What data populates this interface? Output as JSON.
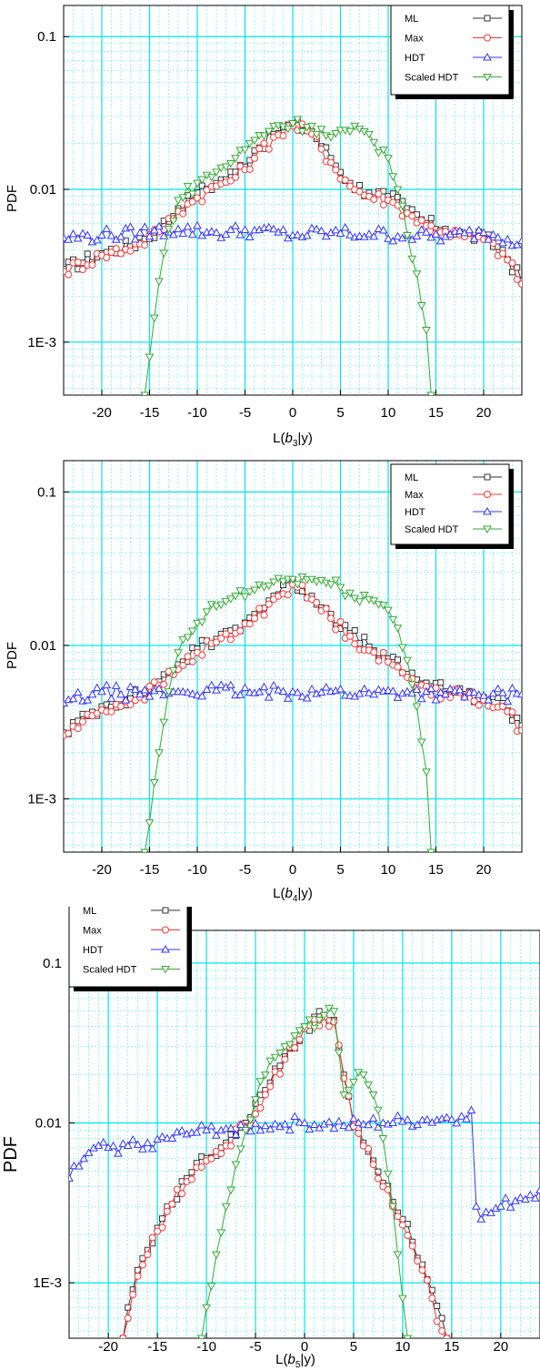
{
  "series_styles": [
    {
      "name": "ML",
      "color": "#333333",
      "marker": "square"
    },
    {
      "name": "Max",
      "color": "#ff3333",
      "marker": "circle"
    },
    {
      "name": "HDT",
      "color": "#3333ff",
      "marker": "triangle-up"
    },
    {
      "name": "Scaled HDT",
      "color": "#33aa33",
      "marker": "triangle-down"
    }
  ],
  "grid_color": "#00e5e5",
  "chart_data": [
    {
      "type": "line",
      "ylabel": "PDF",
      "xlabel_prefix": "L(",
      "xlabel_var": "b",
      "xlabel_sub": "3",
      "xlabel_suffix": "|y)",
      "xlim": [
        -24,
        24
      ],
      "ylim": [
        0.00045,
        0.16
      ],
      "yscale": "log",
      "grid": true,
      "legend": "top-right",
      "xticks": [
        -20,
        -15,
        -10,
        -5,
        0,
        5,
        10,
        15,
        20
      ],
      "yticks": [
        {
          "value": 0.1,
          "label": "0.1"
        },
        {
          "value": 0.01,
          "label": "0.01"
        },
        {
          "value": 0.001,
          "label": "1E-3"
        }
      ],
      "series": [
        {
          "name": "ML",
          "x": [
            -24,
            -20,
            -16,
            -14,
            -12,
            -10,
            -8,
            -6,
            -4,
            -2,
            0,
            2,
            4,
            6,
            8,
            10,
            12,
            14,
            16,
            18,
            20,
            22,
            24
          ],
          "y": [
            0.003,
            0.0038,
            0.0045,
            0.0055,
            0.0075,
            0.0095,
            0.011,
            0.013,
            0.018,
            0.023,
            0.027,
            0.024,
            0.016,
            0.011,
            0.0095,
            0.009,
            0.0075,
            0.006,
            0.0055,
            0.005,
            0.0048,
            0.004,
            0.0025
          ]
        },
        {
          "name": "Max",
          "x": [
            -24,
            -20,
            -16,
            -14,
            -12,
            -10,
            -8,
            -6,
            -4,
            -2,
            0,
            2,
            4,
            6,
            8,
            10,
            12,
            14,
            16,
            18,
            20,
            22,
            24
          ],
          "y": [
            0.0029,
            0.0037,
            0.0044,
            0.0053,
            0.0072,
            0.0088,
            0.0105,
            0.012,
            0.016,
            0.022,
            0.026,
            0.023,
            0.015,
            0.0105,
            0.009,
            0.0085,
            0.007,
            0.0058,
            0.0053,
            0.0049,
            0.0047,
            0.0038,
            0.0024
          ]
        },
        {
          "name": "HDT",
          "x": [
            -24,
            -20,
            -16,
            -12,
            -8,
            -4,
            0,
            4,
            8,
            12,
            16,
            20,
            24
          ],
          "y": [
            0.0048,
            0.005,
            0.0052,
            0.0055,
            0.0052,
            0.0054,
            0.005,
            0.0052,
            0.0051,
            0.005,
            0.0049,
            0.0052,
            0.0046
          ]
        },
        {
          "name": "Scaled HDT",
          "x": [
            -15.5,
            -15,
            -14,
            -13,
            -12,
            -10,
            -8,
            -6,
            -4,
            -2,
            0,
            2,
            4,
            6,
            8,
            10,
            11,
            12,
            13,
            14,
            14.5
          ],
          "y": [
            0.00045,
            0.0008,
            0.0025,
            0.0055,
            0.0085,
            0.011,
            0.013,
            0.016,
            0.021,
            0.026,
            0.027,
            0.026,
            0.022,
            0.024,
            0.023,
            0.016,
            0.01,
            0.005,
            0.0028,
            0.0012,
            0.00045
          ]
        }
      ]
    },
    {
      "type": "line",
      "ylabel": "PDF",
      "xlabel_prefix": "L(",
      "xlabel_var": "b",
      "xlabel_sub": "4",
      "xlabel_suffix": "|y)",
      "xlim": [
        -24,
        24
      ],
      "ylim": [
        0.00045,
        0.16
      ],
      "yscale": "log",
      "grid": true,
      "legend": "top-right",
      "xticks": [
        -20,
        -15,
        -10,
        -5,
        0,
        5,
        10,
        15,
        20
      ],
      "yticks": [
        {
          "value": 0.1,
          "label": "0.1"
        },
        {
          "value": 0.01,
          "label": "0.01"
        },
        {
          "value": 0.001,
          "label": "1E-3"
        }
      ],
      "series": [
        {
          "name": "ML",
          "x": [
            -24,
            -20,
            -16,
            -14,
            -12,
            -10,
            -8,
            -6,
            -4,
            -2,
            0,
            2,
            4,
            6,
            8,
            10,
            12,
            14,
            16,
            18,
            20,
            22,
            24
          ],
          "y": [
            0.0027,
            0.004,
            0.0048,
            0.0058,
            0.0075,
            0.0095,
            0.011,
            0.013,
            0.016,
            0.021,
            0.026,
            0.021,
            0.016,
            0.012,
            0.0098,
            0.0082,
            0.0065,
            0.0057,
            0.005,
            0.0048,
            0.0046,
            0.0042,
            0.003
          ]
        },
        {
          "name": "Max",
          "x": [
            -24,
            -20,
            -16,
            -14,
            -12,
            -10,
            -8,
            -6,
            -4,
            -2,
            0,
            2,
            4,
            6,
            8,
            10,
            12,
            14,
            16,
            18,
            20,
            22,
            24
          ],
          "y": [
            0.0026,
            0.0038,
            0.0046,
            0.0055,
            0.007,
            0.009,
            0.0105,
            0.012,
            0.015,
            0.02,
            0.025,
            0.02,
            0.015,
            0.0115,
            0.0093,
            0.0078,
            0.0062,
            0.0054,
            0.0048,
            0.0046,
            0.0044,
            0.004,
            0.0028
          ]
        },
        {
          "name": "HDT",
          "x": [
            -24,
            -20,
            -16,
            -12,
            -8,
            -4,
            0,
            4,
            8,
            12,
            16,
            20,
            24
          ],
          "y": [
            0.0042,
            0.005,
            0.0048,
            0.005,
            0.0051,
            0.0049,
            0.005,
            0.005,
            0.0049,
            0.005,
            0.0048,
            0.0047,
            0.0048
          ]
        },
        {
          "name": "Scaled HDT",
          "x": [
            -15.5,
            -15,
            -14,
            -13,
            -12,
            -10,
            -8,
            -6,
            -4,
            -2,
            0,
            2,
            4,
            6,
            8,
            10,
            11,
            12,
            13,
            14,
            14.5
          ],
          "y": [
            0.00045,
            0.0007,
            0.002,
            0.005,
            0.009,
            0.014,
            0.018,
            0.021,
            0.023,
            0.026,
            0.027,
            0.027,
            0.025,
            0.022,
            0.02,
            0.017,
            0.013,
            0.008,
            0.004,
            0.0015,
            0.00045
          ]
        }
      ]
    },
    {
      "type": "line",
      "ylabel": "PDF",
      "xlabel_prefix": "L(",
      "xlabel_var": "b",
      "xlabel_sub": "5",
      "xlabel_suffix": "|y)",
      "xlim": [
        -24,
        24
      ],
      "ylim": [
        0.00045,
        0.16
      ],
      "yscale": "log",
      "grid": true,
      "legend": "top-left",
      "xticks": [
        -20,
        -15,
        -10,
        -5,
        0,
        5,
        10,
        15,
        20
      ],
      "yticks": [
        {
          "value": 0.1,
          "label": "0.1"
        },
        {
          "value": 0.01,
          "label": "0.01"
        },
        {
          "value": 0.001,
          "label": "1E-3"
        }
      ],
      "series": [
        {
          "name": "ML",
          "x": [
            -18.5,
            -18,
            -17,
            -16,
            -15,
            -14,
            -12,
            -10,
            -8,
            -6,
            -4,
            -2,
            0,
            2,
            3,
            4,
            5,
            6,
            7,
            8,
            9,
            10,
            11,
            12,
            13,
            14,
            14.5
          ],
          "y": [
            0.00045,
            0.0007,
            0.0012,
            0.0016,
            0.0022,
            0.003,
            0.0045,
            0.006,
            0.0075,
            0.01,
            0.016,
            0.026,
            0.04,
            0.047,
            0.044,
            0.02,
            0.01,
            0.0075,
            0.0058,
            0.0042,
            0.0032,
            0.0025,
            0.0018,
            0.0013,
            0.0009,
            0.0006,
            0.00045
          ]
        },
        {
          "name": "Max",
          "x": [
            -18.5,
            -18,
            -17,
            -16,
            -15,
            -14,
            -12,
            -10,
            -8,
            -6,
            -4,
            -2,
            0,
            2,
            3,
            4,
            5,
            6,
            7,
            8,
            9,
            10,
            11,
            12,
            13,
            14,
            14.5
          ],
          "y": [
            0.00045,
            0.0006,
            0.0011,
            0.0015,
            0.0021,
            0.0028,
            0.0043,
            0.0058,
            0.0072,
            0.0095,
            0.015,
            0.025,
            0.039,
            0.046,
            0.043,
            0.019,
            0.0095,
            0.0072,
            0.0055,
            0.004,
            0.003,
            0.0023,
            0.0017,
            0.0012,
            0.0008,
            0.0005,
            0.00045
          ]
        },
        {
          "name": "HDT",
          "x": [
            -24,
            -22,
            -20,
            -18,
            -16,
            -14,
            -12,
            -10,
            -8,
            -6,
            -4,
            -2,
            0,
            2,
            4,
            6,
            8,
            10,
            12,
            14,
            16,
            17,
            17.5,
            18,
            20,
            22,
            24
          ],
          "y": [
            0.0045,
            0.0065,
            0.007,
            0.0072,
            0.0075,
            0.008,
            0.0085,
            0.009,
            0.0092,
            0.0094,
            0.0096,
            0.0098,
            0.01,
            0.0098,
            0.0096,
            0.0098,
            0.01,
            0.0102,
            0.0104,
            0.0106,
            0.011,
            0.012,
            0.003,
            0.0025,
            0.003,
            0.0034,
            0.0038
          ]
        },
        {
          "name": "Scaled HDT",
          "x": [
            -10.5,
            -10,
            -9,
            -8,
            -7,
            -6,
            -5,
            -4,
            -2,
            0,
            2,
            3,
            4,
            5,
            6,
            7,
            8,
            9,
            10,
            10.5
          ],
          "y": [
            0.00045,
            0.0007,
            0.0015,
            0.003,
            0.0055,
            0.009,
            0.014,
            0.02,
            0.03,
            0.04,
            0.047,
            0.05,
            0.015,
            0.018,
            0.02,
            0.015,
            0.008,
            0.003,
            0.0008,
            0.00045
          ]
        }
      ]
    }
  ]
}
